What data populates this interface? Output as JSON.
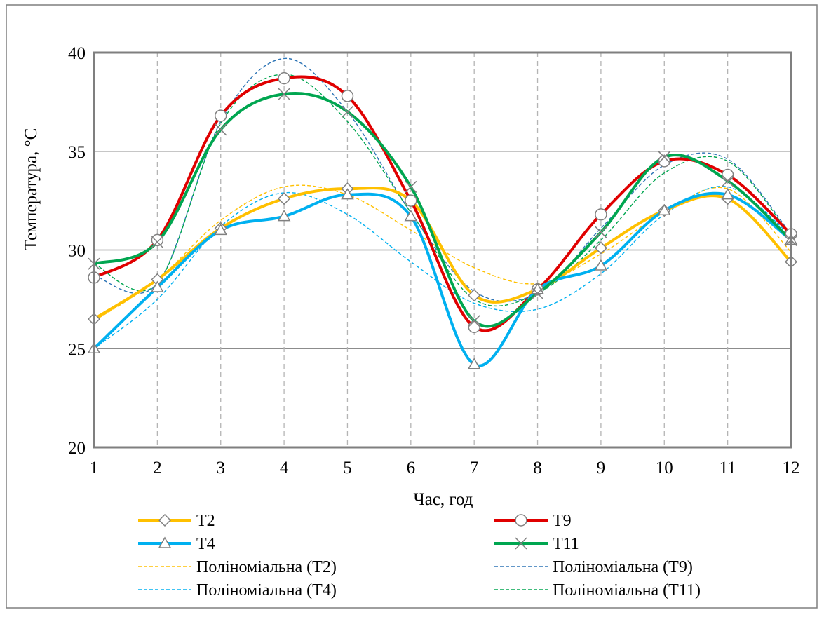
{
  "chart_data": {
    "type": "line",
    "xlabel": "Час, год",
    "ylabel": "Температура, °C",
    "x": [
      1,
      2,
      3,
      4,
      5,
      6,
      7,
      8,
      9,
      10,
      11,
      12
    ],
    "xlim": [
      1,
      12
    ],
    "ylim": [
      20,
      40
    ],
    "y_ticks": [
      20,
      25,
      30,
      35,
      40
    ],
    "x_ticks": [
      "1",
      "2",
      "3",
      "4",
      "5",
      "6",
      "7",
      "8",
      "9",
      "10",
      "11",
      "12"
    ],
    "grid": {
      "horizontal": "solid",
      "vertical": "dashed"
    },
    "legend_position": "bottom",
    "series": [
      {
        "name": "T2",
        "color": "#FFC000",
        "marker": "diamond",
        "values": [
          26.5,
          28.5,
          31.1,
          32.6,
          33.1,
          32.5,
          27.7,
          28.0,
          30.1,
          32.0,
          32.6,
          29.4
        ]
      },
      {
        "name": "T9",
        "color": "#E00000",
        "marker": "circle",
        "values": [
          28.6,
          30.5,
          36.8,
          38.7,
          37.8,
          32.5,
          26.1,
          28.0,
          31.8,
          34.5,
          33.8,
          30.8
        ]
      },
      {
        "name": "T4",
        "color": "#00B0F0",
        "marker": "triangle",
        "values": [
          25.0,
          28.1,
          31.0,
          31.7,
          32.8,
          31.7,
          24.2,
          28.0,
          29.2,
          32.0,
          32.8,
          30.5
        ]
      },
      {
        "name": "T11",
        "color": "#00A650",
        "marker": "x",
        "values": [
          29.3,
          30.4,
          36.1,
          37.9,
          37.0,
          33.2,
          26.4,
          27.8,
          30.9,
          34.7,
          33.5,
          30.5
        ]
      }
    ],
    "trendlines": [
      {
        "name": "Поліноміальна (T2)",
        "color": "#FFC000",
        "values": [
          26.4,
          28.5,
          31.5,
          33.2,
          32.8,
          31.0,
          29.1,
          28.3,
          29.8,
          31.9,
          33.1,
          29.9
        ]
      },
      {
        "name": "Поліноміальна (T9)",
        "color": "#2E75B6",
        "values": [
          28.7,
          28.3,
          36.5,
          39.7,
          37.0,
          31.9,
          27.9,
          27.8,
          31.1,
          34.3,
          34.6,
          30.8
        ]
      },
      {
        "name": "Поліноміальна (T4)",
        "color": "#00B0F0",
        "values": [
          25.0,
          27.5,
          31.2,
          32.9,
          31.8,
          29.4,
          27.3,
          27.0,
          28.8,
          31.8,
          33.2,
          30.7
        ]
      },
      {
        "name": "Поліноміальна (T11)",
        "color": "#00A650",
        "values": [
          29.3,
          28.3,
          36.4,
          38.9,
          36.5,
          31.9,
          27.5,
          27.8,
          30.5,
          33.9,
          34.5,
          30.7
        ]
      }
    ]
  }
}
